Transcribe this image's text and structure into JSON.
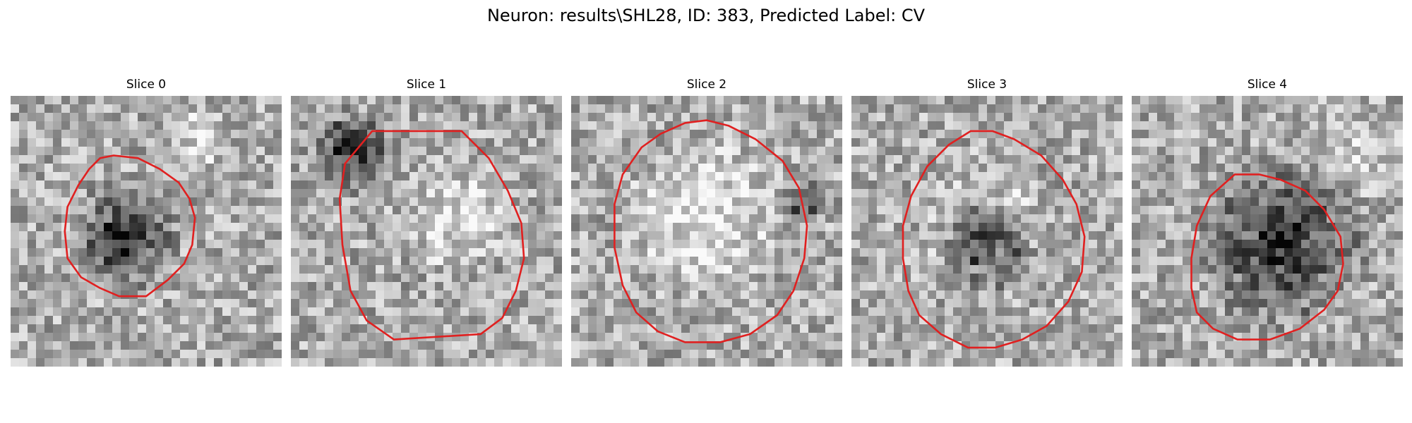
{
  "figure": {
    "title": "Neuron: results\\SHL28, ID: 383, Predicted Label: CV",
    "contour_color": "#e02020",
    "colormap": "gray"
  },
  "slices": [
    {
      "label": "Slice 0",
      "contour": [
        [
          0.33,
          0.23
        ],
        [
          0.38,
          0.22
        ],
        [
          0.47,
          0.23
        ],
        [
          0.55,
          0.27
        ],
        [
          0.62,
          0.32
        ],
        [
          0.66,
          0.38
        ],
        [
          0.68,
          0.45
        ],
        [
          0.67,
          0.55
        ],
        [
          0.64,
          0.62
        ],
        [
          0.58,
          0.68
        ],
        [
          0.5,
          0.74
        ],
        [
          0.4,
          0.74
        ],
        [
          0.33,
          0.71
        ],
        [
          0.26,
          0.67
        ],
        [
          0.21,
          0.6
        ],
        [
          0.2,
          0.5
        ],
        [
          0.21,
          0.41
        ],
        [
          0.25,
          0.33
        ],
        [
          0.29,
          0.27
        ]
      ],
      "texture": {
        "seed": 11,
        "dark": [
          0.42,
          0.52,
          0.22,
          0.7
        ],
        "bright": [
          0.7,
          0.15,
          0.15,
          0.6
        ]
      }
    },
    {
      "label": "Slice 1",
      "contour": [
        [
          0.2,
          0.25
        ],
        [
          0.3,
          0.13
        ],
        [
          0.63,
          0.13
        ],
        [
          0.73,
          0.23
        ],
        [
          0.8,
          0.35
        ],
        [
          0.85,
          0.47
        ],
        [
          0.86,
          0.6
        ],
        [
          0.83,
          0.72
        ],
        [
          0.78,
          0.82
        ],
        [
          0.7,
          0.88
        ],
        [
          0.38,
          0.9
        ],
        [
          0.28,
          0.83
        ],
        [
          0.22,
          0.72
        ],
        [
          0.19,
          0.55
        ],
        [
          0.18,
          0.38
        ]
      ],
      "texture": {
        "seed": 23,
        "dark": [
          0.22,
          0.2,
          0.18,
          0.6
        ],
        "bright": [
          0.6,
          0.45,
          0.25,
          0.6
        ]
      }
    },
    {
      "label": "Slice 2",
      "contour": [
        [
          0.42,
          0.1
        ],
        [
          0.5,
          0.09
        ],
        [
          0.58,
          0.11
        ],
        [
          0.68,
          0.16
        ],
        [
          0.78,
          0.24
        ],
        [
          0.84,
          0.34
        ],
        [
          0.87,
          0.48
        ],
        [
          0.86,
          0.6
        ],
        [
          0.82,
          0.72
        ],
        [
          0.76,
          0.81
        ],
        [
          0.66,
          0.88
        ],
        [
          0.55,
          0.91
        ],
        [
          0.42,
          0.91
        ],
        [
          0.32,
          0.87
        ],
        [
          0.24,
          0.8
        ],
        [
          0.19,
          0.7
        ],
        [
          0.16,
          0.56
        ],
        [
          0.16,
          0.4
        ],
        [
          0.19,
          0.29
        ],
        [
          0.26,
          0.19
        ],
        [
          0.33,
          0.14
        ]
      ],
      "texture": {
        "seed": 37,
        "dark": [
          0.85,
          0.4,
          0.1,
          0.5
        ],
        "bright": [
          0.5,
          0.45,
          0.35,
          0.7
        ]
      }
    },
    {
      "label": "Slice 3",
      "contour": [
        [
          0.44,
          0.13
        ],
        [
          0.52,
          0.13
        ],
        [
          0.6,
          0.16
        ],
        [
          0.7,
          0.22
        ],
        [
          0.78,
          0.31
        ],
        [
          0.83,
          0.4
        ],
        [
          0.86,
          0.52
        ],
        [
          0.85,
          0.65
        ],
        [
          0.8,
          0.76
        ],
        [
          0.72,
          0.85
        ],
        [
          0.63,
          0.9
        ],
        [
          0.53,
          0.93
        ],
        [
          0.43,
          0.93
        ],
        [
          0.33,
          0.88
        ],
        [
          0.25,
          0.81
        ],
        [
          0.21,
          0.72
        ],
        [
          0.19,
          0.6
        ],
        [
          0.19,
          0.48
        ],
        [
          0.22,
          0.37
        ],
        [
          0.28,
          0.26
        ],
        [
          0.36,
          0.18
        ]
      ],
      "texture": {
        "seed": 53,
        "dark": [
          0.5,
          0.55,
          0.2,
          0.75
        ],
        "bright": [
          0.5,
          0.48,
          0.3,
          0.5
        ]
      }
    },
    {
      "label": "Slice 4",
      "contour": [
        [
          0.38,
          0.29
        ],
        [
          0.47,
          0.29
        ],
        [
          0.55,
          0.31
        ],
        [
          0.64,
          0.35
        ],
        [
          0.71,
          0.42
        ],
        [
          0.77,
          0.52
        ],
        [
          0.78,
          0.62
        ],
        [
          0.76,
          0.72
        ],
        [
          0.71,
          0.79
        ],
        [
          0.62,
          0.86
        ],
        [
          0.51,
          0.9
        ],
        [
          0.39,
          0.9
        ],
        [
          0.3,
          0.86
        ],
        [
          0.24,
          0.8
        ],
        [
          0.22,
          0.71
        ],
        [
          0.22,
          0.6
        ],
        [
          0.24,
          0.48
        ],
        [
          0.29,
          0.37
        ]
      ],
      "texture": {
        "seed": 71,
        "dark": [
          0.55,
          0.55,
          0.35,
          0.65
        ],
        "bright": [
          0.85,
          0.2,
          0.2,
          0.5
        ]
      }
    }
  ]
}
